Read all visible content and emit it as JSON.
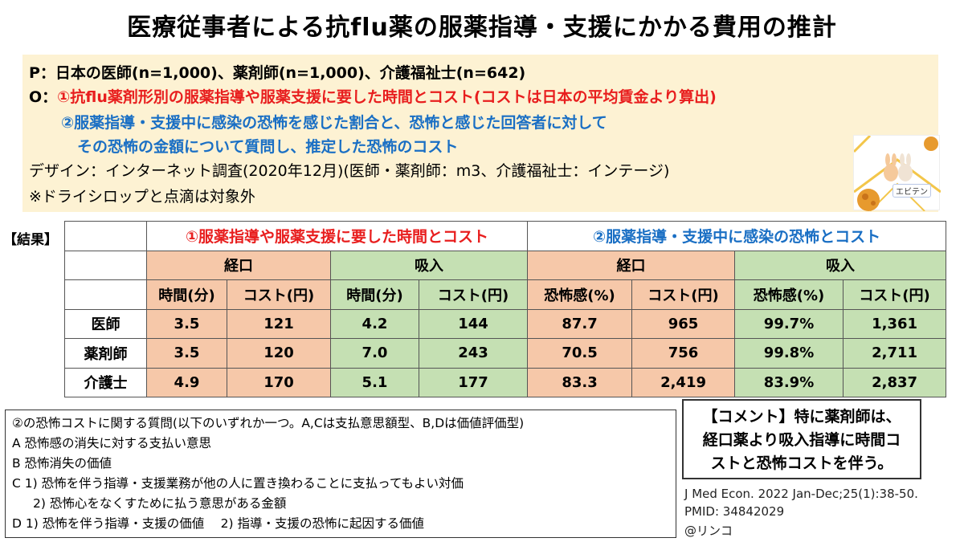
{
  "title": "医療従事者による抗flu薬の服薬指導・支援にかかる費用の推計",
  "summary": {
    "p_line": "P：日本の医師(n=1,000)、薬剤師(n=1,000)、介護福祉士(n=642)",
    "o_label": "O：",
    "o1": "①抗flu薬剤形別の服薬指導や服薬支援に要した時間とコスト(コストは日本の平均賃金より算出)",
    "o2_line1": "②服薬指導・支援中に感染の恐怖を感じた割合と、恐怖と感じた回答者に対して",
    "o2_line2": "その恐怖の金額について質問し、推定した恐怖のコスト",
    "design": "デザイン：インターネット調査(2020年12月)(医師・薬剤師：m3、介護福祉士：インテージ)",
    "note": "※ドライシロップと点滴は対象外"
  },
  "logo": {
    "text": "エビテン",
    "icon": "rabbit-mascot-icon"
  },
  "results": {
    "label": "【結果】",
    "section1": "①服薬指導や服薬支援に要した時間とコスト",
    "section2": "②服薬指導・支援中に感染の恐怖とコスト",
    "oral": "経口",
    "inhal": "吸入",
    "col_time": "時間(分)",
    "col_cost": "コスト(円)",
    "col_fear": "恐怖感(%)",
    "rows": [
      {
        "name": "医師",
        "v": [
          "3.5",
          "121",
          "4.2",
          "144",
          "87.7",
          "965",
          "99.7%",
          "1,361"
        ]
      },
      {
        "name": "薬剤師",
        "v": [
          "3.5",
          "120",
          "7.0",
          "243",
          "70.5",
          "756",
          "99.8%",
          "2,711"
        ]
      },
      {
        "name": "介護士",
        "v": [
          "4.9",
          "170",
          "5.1",
          "177",
          "83.3",
          "2,419",
          "83.9%",
          "2,837"
        ]
      }
    ]
  },
  "questions": {
    "intro": "②の恐怖コストに関する質問(以下のいずれか一つ。A,Cは支払意思額型、B,Dは価値評価型)",
    "a": "A 恐怖感の消失に対する支払い意思",
    "b": "B 恐怖消失の価値",
    "c1": "C 1) 恐怖を伴う指導・支援業務が他の人に置き換わることに支払ってもよい対価",
    "c2": "2) 恐怖心をなくすために払う意思がある金額",
    "d": "D 1) 恐怖を伴う指導・支援の価値　 2) 指導・支援の恐怖に起因する価値"
  },
  "comment": {
    "line1": "【コメント】特に薬剤師は、",
    "line2": "経口薬より吸入指導に時間コ",
    "line3": "ストと恐怖コストを伴う。"
  },
  "reference": {
    "journal": "J Med Econ. 2022 Jan-Dec;25(1):38-50.",
    "pmid": "PMID: 34842029",
    "author": "@リンコ"
  },
  "colors": {
    "summary_bg": "#fdf2d3",
    "red": "#e81e1e",
    "blue": "#1a6fc4",
    "oral_bg": "#f6c8a9",
    "inhal_bg": "#c5e0b3"
  }
}
